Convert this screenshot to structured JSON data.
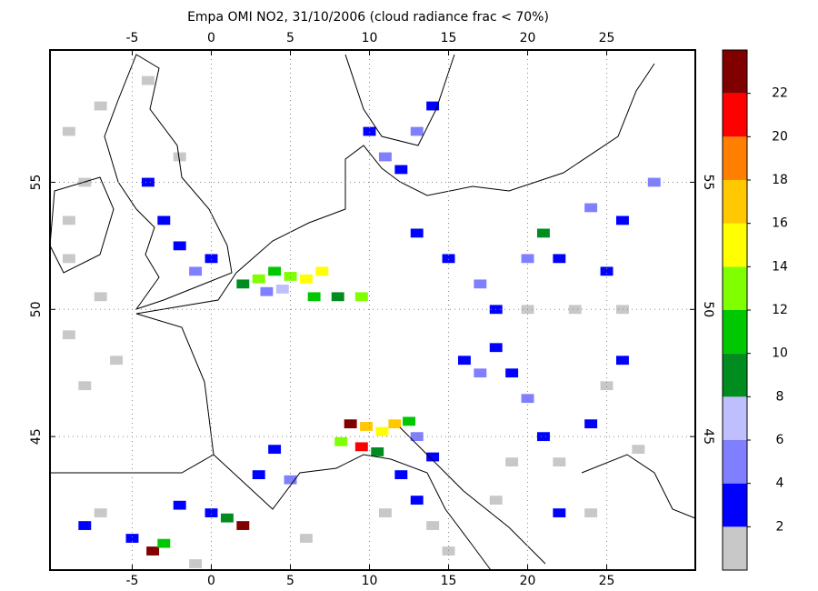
{
  "title": "Empa OMI NO2, 31/10/2006 (cloud radiance frac < 70%)",
  "map": {
    "lon_range": [
      -10.2,
      30.6
    ],
    "lat_range": [
      39.75,
      60.2
    ],
    "lon_ticks": [
      -5,
      0,
      5,
      10,
      15,
      20,
      25
    ],
    "lat_ticks": [
      45,
      50,
      55
    ]
  },
  "colorbar": {
    "levels": [
      2,
      4,
      6,
      8,
      10,
      12,
      14,
      16,
      18,
      20,
      22
    ],
    "colors": [
      "#c8c8c8",
      "#0000ff",
      "#7f7fff",
      "#bfbfff",
      "#008c1e",
      "#00c800",
      "#7fff00",
      "#ffff00",
      "#ffc800",
      "#ff8000",
      "#ff0000",
      "#800000"
    ]
  },
  "pixels": [
    [
      -9,
      57,
      1
    ],
    [
      -8,
      55,
      1
    ],
    [
      -9,
      52,
      1
    ],
    [
      -7,
      50.5,
      1
    ],
    [
      -9,
      49,
      1
    ],
    [
      -8,
      47,
      1
    ],
    [
      -6,
      48,
      1
    ],
    [
      -9,
      53.5,
      1
    ],
    [
      -7,
      58,
      1
    ],
    [
      -4,
      59,
      1
    ],
    [
      -3,
      53.5,
      3
    ],
    [
      -2,
      52.5,
      3
    ],
    [
      -1,
      51.5,
      5
    ],
    [
      0,
      52,
      3
    ],
    [
      -4,
      55,
      3
    ],
    [
      -2,
      56,
      1
    ],
    [
      2,
      51,
      9
    ],
    [
      3,
      51.2,
      13
    ],
    [
      4,
      51.5,
      11
    ],
    [
      5,
      51.3,
      13
    ],
    [
      6,
      51.2,
      15
    ],
    [
      4.5,
      50.8,
      7
    ],
    [
      3.5,
      50.7,
      5
    ],
    [
      7,
      51.5,
      15
    ],
    [
      6.5,
      50.5,
      11
    ],
    [
      8,
      50.5,
      9
    ],
    [
      9.5,
      50.5,
      13
    ],
    [
      10,
      57,
      3
    ],
    [
      11,
      56,
      5
    ],
    [
      12,
      55.5,
      3
    ],
    [
      13,
      57,
      5
    ],
    [
      14,
      58,
      3
    ],
    [
      13,
      53,
      3
    ],
    [
      15,
      52,
      3
    ],
    [
      17,
      51,
      5
    ],
    [
      18,
      50,
      3
    ],
    [
      20,
      52,
      5
    ],
    [
      21,
      53,
      9
    ],
    [
      22,
      52,
      3
    ],
    [
      24,
      54,
      5
    ],
    [
      26,
      53.5,
      3
    ],
    [
      28,
      55,
      5
    ],
    [
      16,
      48,
      3
    ],
    [
      17,
      47.5,
      5
    ],
    [
      18,
      48.5,
      3
    ],
    [
      19,
      47.5,
      3
    ],
    [
      20,
      46.5,
      5
    ],
    [
      21,
      45,
      3
    ],
    [
      22,
      44,
      1
    ],
    [
      24,
      45.5,
      3
    ],
    [
      25,
      47,
      1
    ],
    [
      26,
      48,
      3
    ],
    [
      27,
      44.5,
      1
    ],
    [
      19,
      44,
      1
    ],
    [
      22,
      42,
      3
    ],
    [
      18,
      42.5,
      1
    ],
    [
      24,
      42,
      1
    ],
    [
      8.8,
      45.5,
      23
    ],
    [
      9.8,
      45.4,
      17
    ],
    [
      10.8,
      45.2,
      15
    ],
    [
      11.6,
      45.5,
      17
    ],
    [
      12.5,
      45.6,
      11
    ],
    [
      8.2,
      44.8,
      13
    ],
    [
      9.5,
      44.6,
      21
    ],
    [
      10.5,
      44.4,
      9
    ],
    [
      13,
      45,
      5
    ],
    [
      14,
      44.2,
      3
    ],
    [
      12,
      43.5,
      3
    ],
    [
      13,
      42.5,
      3
    ],
    [
      14,
      41.5,
      1
    ],
    [
      11,
      42,
      1
    ],
    [
      15,
      40.5,
      1
    ],
    [
      -3.7,
      40.5,
      23
    ],
    [
      -3,
      40.8,
      11
    ],
    [
      -5,
      41,
      3
    ],
    [
      -8,
      41.5,
      3
    ],
    [
      -7,
      42,
      1
    ],
    [
      2,
      41.5,
      23
    ],
    [
      1,
      41.8,
      9
    ],
    [
      0,
      42,
      3
    ],
    [
      -2,
      42.3,
      3
    ],
    [
      3,
      43.5,
      3
    ],
    [
      5,
      43.3,
      5
    ],
    [
      6,
      41,
      1
    ],
    [
      -1,
      40,
      1
    ],
    [
      4,
      44.5,
      3
    ],
    [
      20,
      50,
      1
    ],
    [
      23,
      50,
      1
    ],
    [
      26,
      50,
      1
    ],
    [
      25,
      51.5,
      3
    ]
  ]
}
